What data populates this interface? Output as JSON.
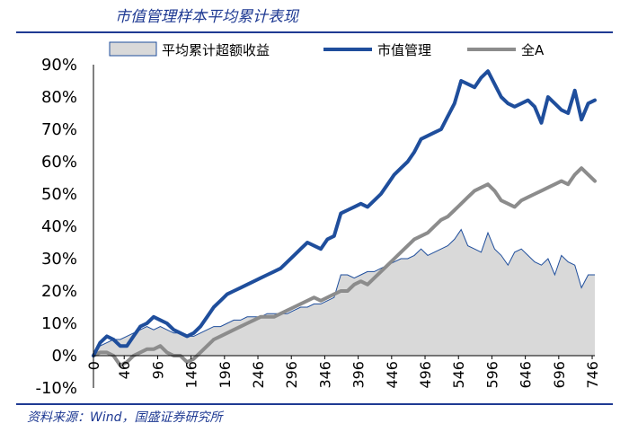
{
  "title": "市值管理样本平均累计表现",
  "source": "资料来源：Wind，国盛证券研究所",
  "chart_data": {
    "type": "line",
    "x_ticks": [
      "0",
      "46",
      "96",
      "146",
      "196",
      "246",
      "296",
      "346",
      "396",
      "446",
      "496",
      "546",
      "596",
      "646",
      "696",
      "746"
    ],
    "ylim": [
      -10,
      90
    ],
    "y_ticks": [
      "-10%",
      "0%",
      "10%",
      "20%",
      "30%",
      "40%",
      "50%",
      "60%",
      "70%",
      "80%",
      "90%"
    ],
    "legend_position": "top",
    "colors": {
      "excess": "#d9d9d9",
      "market_cap": "#1f4e9c",
      "all_a": "#8c8c8c"
    },
    "series": [
      {
        "name": "平均累计超额收益",
        "style": "area",
        "x": [
          0,
          10,
          20,
          30,
          40,
          50,
          60,
          70,
          80,
          90,
          100,
          110,
          120,
          130,
          140,
          150,
          160,
          170,
          180,
          190,
          200,
          210,
          220,
          230,
          240,
          250,
          260,
          270,
          280,
          290,
          300,
          310,
          320,
          330,
          340,
          350,
          360,
          370,
          380,
          390,
          400,
          410,
          420,
          430,
          440,
          450,
          460,
          470,
          480,
          490,
          500,
          510,
          520,
          530,
          540,
          550,
          560,
          570,
          580,
          590,
          600,
          610,
          620,
          630,
          640,
          650,
          660,
          670,
          680,
          690,
          700,
          710,
          720,
          730,
          740,
          750
        ],
        "values": [
          0,
          3,
          4,
          5,
          5,
          6,
          7,
          8,
          9,
          8,
          9,
          8,
          7,
          7,
          6,
          6,
          7,
          8,
          9,
          9,
          10,
          11,
          11,
          12,
          12,
          12,
          13,
          13,
          13,
          13,
          14,
          15,
          15,
          16,
          16,
          17,
          18,
          25,
          25,
          24,
          25,
          26,
          26,
          27,
          28,
          29,
          30,
          30,
          31,
          33,
          31,
          32,
          33,
          34,
          36,
          39,
          34,
          33,
          32,
          38,
          33,
          31,
          28,
          32,
          33,
          31,
          29,
          28,
          30,
          25,
          31,
          29,
          28,
          21,
          25,
          25
        ]
      },
      {
        "name": "市值管理",
        "style": "line",
        "x": [
          0,
          10,
          20,
          30,
          40,
          50,
          60,
          70,
          80,
          90,
          100,
          110,
          120,
          130,
          140,
          150,
          160,
          170,
          180,
          190,
          200,
          210,
          220,
          230,
          240,
          250,
          260,
          270,
          280,
          290,
          300,
          310,
          320,
          330,
          340,
          350,
          360,
          370,
          380,
          390,
          400,
          410,
          420,
          430,
          440,
          450,
          460,
          470,
          480,
          490,
          500,
          510,
          520,
          530,
          540,
          550,
          560,
          570,
          580,
          590,
          600,
          610,
          620,
          630,
          640,
          650,
          660,
          670,
          680,
          690,
          700,
          710,
          720,
          730,
          740,
          750
        ],
        "values": [
          0,
          4,
          6,
          5,
          3,
          3,
          6,
          9,
          10,
          12,
          11,
          10,
          8,
          7,
          6,
          7,
          9,
          12,
          15,
          17,
          19,
          20,
          21,
          22,
          23,
          24,
          25,
          26,
          27,
          29,
          31,
          33,
          35,
          34,
          33,
          36,
          37,
          44,
          45,
          46,
          47,
          46,
          48,
          50,
          53,
          56,
          58,
          60,
          63,
          67,
          68,
          69,
          70,
          74,
          78,
          85,
          84,
          83,
          86,
          88,
          84,
          80,
          78,
          77,
          78,
          79,
          77,
          72,
          80,
          78,
          76,
          75,
          82,
          73,
          78,
          79
        ]
      },
      {
        "name": "全A",
        "style": "line",
        "x": [
          0,
          10,
          20,
          30,
          40,
          50,
          60,
          70,
          80,
          90,
          100,
          110,
          120,
          130,
          140,
          150,
          160,
          170,
          180,
          190,
          200,
          210,
          220,
          230,
          240,
          250,
          260,
          270,
          280,
          290,
          300,
          310,
          320,
          330,
          340,
          350,
          360,
          370,
          380,
          390,
          400,
          410,
          420,
          430,
          440,
          450,
          460,
          470,
          480,
          490,
          500,
          510,
          520,
          530,
          540,
          550,
          560,
          570,
          580,
          590,
          600,
          610,
          620,
          630,
          640,
          650,
          660,
          670,
          680,
          690,
          700,
          710,
          720,
          730,
          740,
          750
        ],
        "values": [
          0,
          1,
          1,
          0,
          -3,
          -2,
          0,
          1,
          2,
          2,
          3,
          1,
          0,
          0,
          -2,
          -1,
          1,
          3,
          5,
          6,
          7,
          8,
          9,
          10,
          11,
          12,
          12,
          12,
          13,
          14,
          15,
          16,
          17,
          18,
          17,
          18,
          19,
          20,
          20,
          22,
          23,
          22,
          24,
          26,
          28,
          30,
          32,
          34,
          36,
          37,
          38,
          40,
          42,
          43,
          45,
          47,
          49,
          51,
          52,
          53,
          51,
          48,
          47,
          46,
          48,
          49,
          50,
          51,
          52,
          53,
          54,
          53,
          56,
          58,
          56,
          54
        ]
      }
    ]
  }
}
